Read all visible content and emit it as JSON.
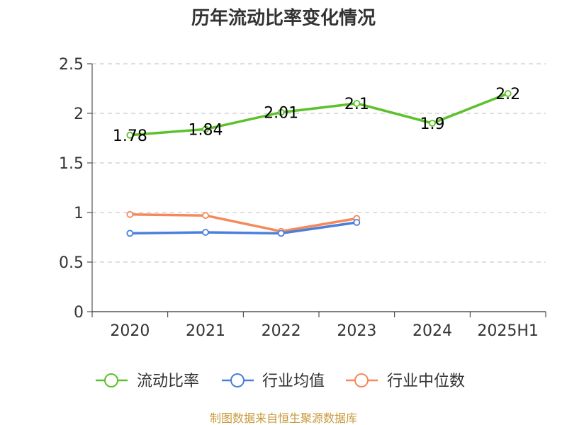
{
  "chart_data": {
    "type": "line",
    "title": "历年流动比率变化情况",
    "categories": [
      "2020",
      "2021",
      "2022",
      "2023",
      "2024",
      "2025H1"
    ],
    "ylim": [
      0,
      2.5
    ],
    "yticks": [
      "0",
      "0.5",
      "1",
      "1.5",
      "2",
      "2.5"
    ],
    "grid": true,
    "legend_position": "bottom",
    "series": [
      {
        "name": "流动比率",
        "color": "#5cc12a",
        "values": [
          1.78,
          1.84,
          2.01,
          2.1,
          1.9,
          2.2
        ],
        "labels": [
          "1.78",
          "1.84",
          "2.01",
          "2.1",
          "1.9",
          "2.2"
        ]
      },
      {
        "name": "行业均值",
        "color": "#4a7fdc",
        "values": [
          0.79,
          0.8,
          0.79,
          0.9,
          null,
          null
        ]
      },
      {
        "name": "行业中位数",
        "color": "#f5895a",
        "values": [
          0.98,
          0.97,
          0.81,
          0.94,
          null,
          null
        ]
      }
    ]
  },
  "footer": "制图数据来自恒生聚源数据库"
}
